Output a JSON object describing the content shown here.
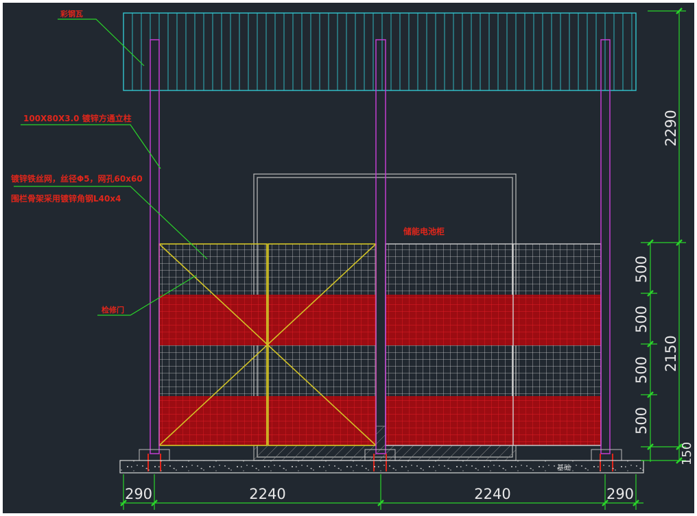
{
  "annotations": {
    "roof_label": "彩钢瓦",
    "column_label": "100X80X3.0 镀锌方通立柱",
    "mesh_label_1": "镀锌铁丝网，丝径Φ5，网孔60x60",
    "mesh_label_2": "围栏骨架采用镀锌角钢L40x4",
    "door_label": "检修门",
    "cabinet_label": "储能电池柜",
    "foundation_label": "基础"
  },
  "dimensions": {
    "bottom": [
      "290",
      "2240",
      "2240",
      "290"
    ],
    "right_top": "2290",
    "right_total": "2150",
    "right_segments": [
      "500",
      "500",
      "500",
      "500"
    ],
    "right_base": "150"
  },
  "colors": {
    "background": "#212830",
    "annotation": "#e0261b",
    "roof": "#33c6cf",
    "column": "#c23ed0",
    "dimension_line": "#2ad52a",
    "door_frame": "#d4c526",
    "mesh_white": "#cfcfcf",
    "mesh_red": "#c0141b",
    "cabinet_outline": "#bdbdbd"
  }
}
